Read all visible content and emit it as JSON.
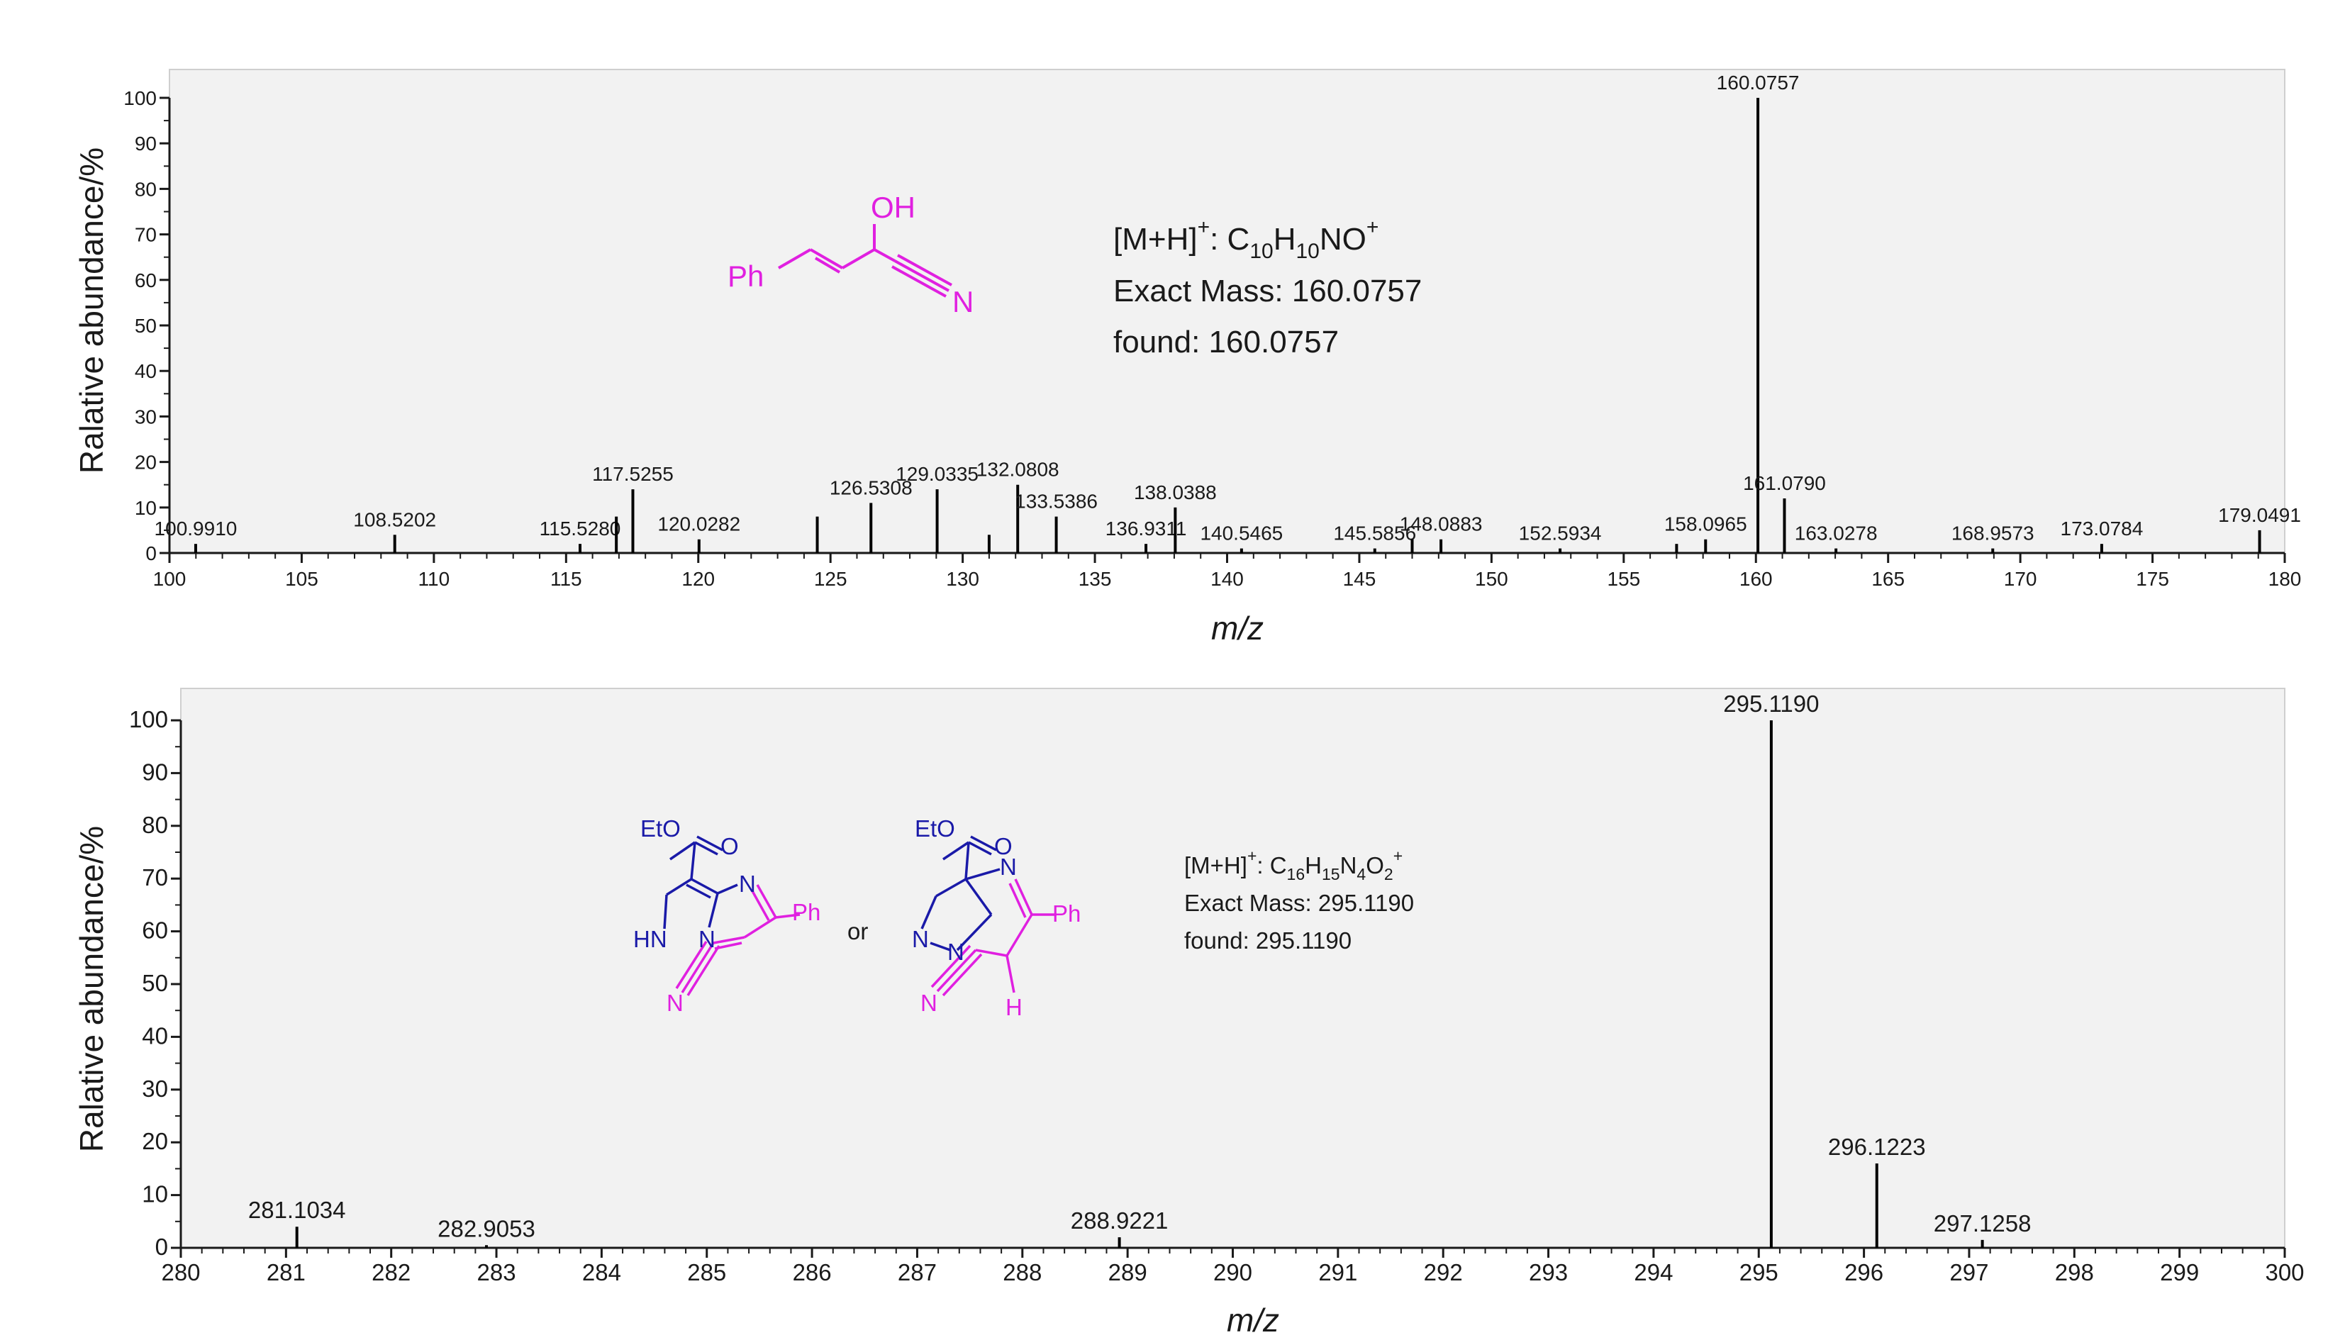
{
  "chart_data": [
    {
      "type": "bar",
      "xlabel": "m/z",
      "ylabel": "Ralative abundance/%",
      "xlim": [
        100,
        180
      ],
      "ylim": [
        0,
        100
      ],
      "xticks": [
        "100",
        "105",
        "110",
        "115",
        "120",
        "125",
        "130",
        "135",
        "140",
        "145",
        "150",
        "155",
        "160",
        "165",
        "170",
        "175",
        "180"
      ],
      "yticks": [
        "0",
        "10",
        "20",
        "30",
        "40",
        "50",
        "60",
        "70",
        "80",
        "90",
        "100"
      ],
      "peaks": [
        {
          "x": 100.991,
          "y": 2,
          "label": "100.9910"
        },
        {
          "x": 108.5202,
          "y": 4,
          "label": "108.5202"
        },
        {
          "x": 115.528,
          "y": 2,
          "label": "115.5280"
        },
        {
          "x": 116.9,
          "y": 8
        },
        {
          "x": 117.5255,
          "y": 14,
          "label": "117.5255"
        },
        {
          "x": 120.0282,
          "y": 3,
          "label": "120.0282"
        },
        {
          "x": 124.5,
          "y": 8
        },
        {
          "x": 126.5308,
          "y": 11,
          "label": "126.5308"
        },
        {
          "x": 129.0335,
          "y": 14,
          "label": "129.0335"
        },
        {
          "x": 131.0,
          "y": 4
        },
        {
          "x": 132.0808,
          "y": 15,
          "label": "132.0808"
        },
        {
          "x": 133.5386,
          "y": 8,
          "label": "133.5386"
        },
        {
          "x": 136.9311,
          "y": 2,
          "label": "136.9311"
        },
        {
          "x": 138.0388,
          "y": 10,
          "label": "138.0388"
        },
        {
          "x": 140.5465,
          "y": 1,
          "label": "140.5465"
        },
        {
          "x": 145.5856,
          "y": 1,
          "label": "145.5856"
        },
        {
          "x": 147.0,
          "y": 3
        },
        {
          "x": 148.0883,
          "y": 3,
          "label": "148.0883"
        },
        {
          "x": 152.5934,
          "y": 1,
          "label": "152.5934"
        },
        {
          "x": 157.0,
          "y": 2
        },
        {
          "x": 158.0965,
          "y": 3,
          "label": "158.0965"
        },
        {
          "x": 160.0757,
          "y": 100,
          "label": "160.0757"
        },
        {
          "x": 161.079,
          "y": 12,
          "label": "161.0790"
        },
        {
          "x": 163.0278,
          "y": 1,
          "label": "163.0278"
        },
        {
          "x": 168.9573,
          "y": 1,
          "label": "168.9573"
        },
        {
          "x": 173.0784,
          "y": 2,
          "label": "173.0784"
        },
        {
          "x": 179.0491,
          "y": 5,
          "label": "179.0491"
        }
      ],
      "annotation": {
        "line1_prefix": "[M+H]",
        "line1_sup": "+",
        "line1_colon": ": C",
        "f1": "10",
        "h": "H",
        "f2": "10",
        "rest": "NO",
        "rest_sup": "+",
        "line2": "Exact Mass: 160.0757",
        "line3": "found: 160.0757"
      },
      "structure": {
        "oh": "OH",
        "ph": "Ph",
        "n": "N"
      }
    },
    {
      "type": "bar",
      "xlabel": "m/z",
      "ylabel": "Ralative abundance/%",
      "xlim": [
        280,
        300
      ],
      "ylim": [
        0,
        100
      ],
      "xticks": [
        "280",
        "281",
        "282",
        "283",
        "284",
        "285",
        "286",
        "287",
        "288",
        "289",
        "290",
        "291",
        "292",
        "293",
        "294",
        "295",
        "296",
        "297",
        "298",
        "299",
        "300"
      ],
      "yticks": [
        "0",
        "10",
        "20",
        "30",
        "40",
        "50",
        "60",
        "70",
        "80",
        "90",
        "100"
      ],
      "peaks": [
        {
          "x": 281.1034,
          "y": 4,
          "label": "281.1034"
        },
        {
          "x": 282.9053,
          "y": 0.5,
          "label": "282.9053"
        },
        {
          "x": 288.9221,
          "y": 2,
          "label": "288.9221"
        },
        {
          "x": 295.119,
          "y": 100,
          "label": "295.1190"
        },
        {
          "x": 296.1223,
          "y": 16,
          "label": "296.1223"
        },
        {
          "x": 297.1258,
          "y": 1.5,
          "label": "297.1258"
        }
      ],
      "annotation": {
        "line1_prefix": "[M+H]",
        "line1_sup": "+",
        "line1_colon": ": C",
        "f1": "16",
        "h": "H",
        "f2": "15",
        "n": "N",
        "f3": "4",
        "o": "O",
        "f4": "2",
        "rest_sup": "+",
        "line2": "Exact Mass: 295.1190",
        "line3": "found: 295.1190"
      },
      "structure": {
        "eto": "EtO",
        "o": "O",
        "n": "N",
        "hn": "HN",
        "ph": "Ph",
        "or": "or",
        "h": "H"
      }
    }
  ]
}
